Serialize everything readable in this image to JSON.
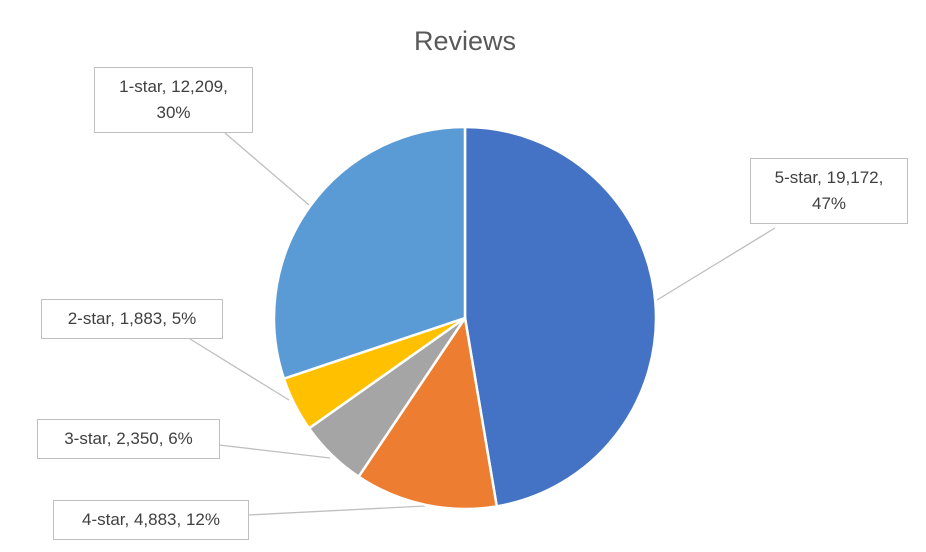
{
  "chart_data": {
    "type": "pie",
    "title": "Reviews",
    "categories": [
      "5-star",
      "4-star",
      "3-star",
      "2-star",
      "1-star"
    ],
    "values": [
      19172,
      4883,
      2350,
      1883,
      12209
    ],
    "value_labels": [
      "19,172",
      "4,883",
      "2,350",
      "1,883",
      "12,209"
    ],
    "percent_labels": [
      "47%",
      "12%",
      "6%",
      "5%",
      "30%"
    ],
    "label_separator": ", ",
    "colors": [
      "#4472C4",
      "#ED7D31",
      "#A5A5A5",
      "#FFC000",
      "#5B9BD5"
    ]
  }
}
